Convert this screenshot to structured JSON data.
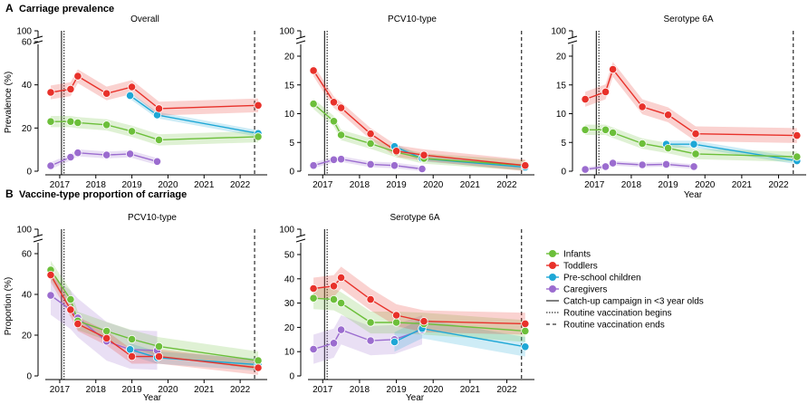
{
  "colors": {
    "infants": "#6cbf3a",
    "toddlers": "#e8312a",
    "preschool": "#1ea7d6",
    "caregivers": "#9b6ccf",
    "axis": "#000000"
  },
  "sections": [
    {
      "letter": "A",
      "title": "Carriage prevalence"
    },
    {
      "letter": "B",
      "title": "Vaccine-type proportion of carriage"
    }
  ],
  "legend": {
    "items": [
      {
        "key": "infants",
        "label": "Infants",
        "kind": "dot"
      },
      {
        "key": "toddlers",
        "label": "Toddlers",
        "kind": "dot"
      },
      {
        "key": "preschool",
        "label": "Pre-school children",
        "kind": "dot"
      },
      {
        "key": "caregivers",
        "label": "Caregivers",
        "kind": "dot"
      },
      {
        "key": "catchup",
        "label": "Catch-up campaign in <3 year olds",
        "kind": "solid"
      },
      {
        "key": "routine_begin",
        "label": "Routine vaccination begins",
        "kind": "dotted"
      },
      {
        "key": "routine_end",
        "label": "Routine vaccination ends",
        "kind": "dashed"
      }
    ]
  },
  "events": {
    "catchup": 2017.05,
    "routine_begin": 2017.12,
    "routine_end": 2022.4
  },
  "chart_data": [
    {
      "id": "a-overall",
      "type": "line",
      "title": "Overall",
      "ylabel": "Prevalence (%)",
      "xlabel": "",
      "yticks": [
        0,
        20,
        40,
        60
      ],
      "ybreak_top": 100,
      "ylim": [
        0,
        60
      ],
      "xticks": [
        2017,
        2018,
        2019,
        2020,
        2021,
        2022
      ],
      "xlim": [
        2016.6,
        2022.75
      ],
      "series": [
        {
          "name": "Toddlers",
          "key": "toddlers",
          "x": [
            2016.75,
            2017.3,
            2017.5,
            2018.3,
            2019.0,
            2019.75,
            2022.5
          ],
          "y": [
            36.5,
            38.0,
            44.0,
            36.0,
            39.0,
            29.0,
            30.5
          ]
        },
        {
          "name": "Infants",
          "key": "infants",
          "x": [
            2016.75,
            2017.3,
            2017.5,
            2018.3,
            2019.0,
            2019.75,
            2022.5
          ],
          "y": [
            23.0,
            23.0,
            22.5,
            21.5,
            18.5,
            14.5,
            16.0
          ]
        },
        {
          "name": "Pre-school children",
          "key": "preschool",
          "x": [
            2018.95,
            2019.7,
            2022.5
          ],
          "y": [
            35.0,
            26.0,
            17.5
          ]
        },
        {
          "name": "Caregivers",
          "key": "caregivers",
          "x": [
            2016.75,
            2017.3,
            2017.5,
            2018.3,
            2018.95,
            2019.7
          ],
          "y": [
            2.5,
            6.5,
            8.5,
            7.5,
            8.0,
            4.5
          ]
        }
      ]
    },
    {
      "id": "a-pcv10",
      "type": "line",
      "title": "PCV10-type",
      "ylabel": "",
      "xlabel": "",
      "yticks": [
        0,
        5,
        10,
        15,
        20
      ],
      "ybreak_top": 100,
      "ylim": [
        0,
        20
      ],
      "xticks": [
        2017,
        2018,
        2019,
        2020,
        2021,
        2022
      ],
      "xlim": [
        2016.6,
        2022.75
      ],
      "series": [
        {
          "name": "Toddlers",
          "key": "toddlers",
          "x": [
            2016.75,
            2017.3,
            2017.5,
            2018.3,
            2019.0,
            2019.75,
            2022.5
          ],
          "y": [
            17.5,
            12.0,
            11.0,
            6.5,
            3.5,
            2.8,
            1.0
          ]
        },
        {
          "name": "Infants",
          "key": "infants",
          "x": [
            2016.75,
            2017.3,
            2017.5,
            2018.3,
            2019.0,
            2019.75,
            2022.5
          ],
          "y": [
            11.7,
            8.7,
            6.3,
            4.8,
            3.3,
            2.2,
            1.0
          ]
        },
        {
          "name": "Pre-school children",
          "key": "preschool",
          "x": [
            2018.95,
            2019.7,
            2022.5
          ],
          "y": [
            4.3,
            2.2,
            0.7
          ]
        },
        {
          "name": "Caregivers",
          "key": "caregivers",
          "x": [
            2016.75,
            2017.3,
            2017.5,
            2018.3,
            2018.95,
            2019.7
          ],
          "y": [
            1.0,
            2.0,
            2.1,
            1.2,
            1.0,
            0.4
          ]
        }
      ]
    },
    {
      "id": "a-6a",
      "type": "line",
      "title": "Serotype 6A",
      "ylabel": "",
      "xlabel": "Year",
      "yticks": [
        0,
        5,
        10,
        15,
        20
      ],
      "ybreak_top": 100,
      "ylim": [
        0,
        20
      ],
      "xticks": [
        2017,
        2018,
        2019,
        2020,
        2021,
        2022
      ],
      "xlim": [
        2016.6,
        2022.75
      ],
      "series": [
        {
          "name": "Toddlers",
          "key": "toddlers",
          "x": [
            2016.75,
            2017.3,
            2017.5,
            2018.3,
            2019.0,
            2019.75,
            2022.5
          ],
          "y": [
            12.5,
            13.8,
            17.7,
            11.2,
            9.8,
            6.5,
            6.2
          ]
        },
        {
          "name": "Infants",
          "key": "infants",
          "x": [
            2016.75,
            2017.3,
            2017.5,
            2018.3,
            2019.0,
            2019.75,
            2022.5
          ],
          "y": [
            7.2,
            7.2,
            6.7,
            4.8,
            4.0,
            3.0,
            2.5
          ]
        },
        {
          "name": "Pre-school children",
          "key": "preschool",
          "x": [
            2018.95,
            2019.7,
            2022.5
          ],
          "y": [
            4.7,
            4.7,
            1.8
          ]
        },
        {
          "name": "Caregivers",
          "key": "caregivers",
          "x": [
            2016.75,
            2017.3,
            2017.5,
            2018.3,
            2018.95,
            2019.7
          ],
          "y": [
            0.3,
            0.8,
            1.4,
            1.1,
            1.2,
            0.8
          ]
        }
      ]
    },
    {
      "id": "b-pcv10",
      "type": "line",
      "title": "PCV10-type",
      "ylabel": "Proportion (%)",
      "xlabel": "Year",
      "yticks": [
        0,
        20,
        40,
        60
      ],
      "ybreak_top": 100,
      "ylim": [
        0,
        60
      ],
      "xticks": [
        2017,
        2018,
        2019,
        2020,
        2021,
        2022
      ],
      "xlim": [
        2016.6,
        2022.75
      ],
      "series": [
        {
          "name": "Infants",
          "key": "infants",
          "x": [
            2016.75,
            2017.3,
            2017.5,
            2018.3,
            2019.0,
            2019.75,
            2022.5
          ],
          "y": [
            52.0,
            37.5,
            27.0,
            22.0,
            18.0,
            14.5,
            7.5
          ]
        },
        {
          "name": "Toddlers",
          "key": "toddlers",
          "x": [
            2016.75,
            2017.3,
            2017.5,
            2018.3,
            2019.0,
            2019.75,
            2022.5
          ],
          "y": [
            49.5,
            32.5,
            25.5,
            18.5,
            9.5,
            9.5,
            4.0
          ]
        },
        {
          "name": "Pre-school children",
          "key": "preschool",
          "x": [
            2018.95,
            2019.7,
            2022.5
          ],
          "y": [
            13.0,
            9.0,
            5.5
          ]
        },
        {
          "name": "Caregivers",
          "key": "caregivers",
          "x": [
            2016.75,
            2017.3,
            2017.5,
            2018.3,
            2018.95,
            2019.7
          ],
          "y": [
            39.5,
            32.5,
            28.5,
            17.0,
            13.0,
            12.5
          ]
        }
      ]
    },
    {
      "id": "b-6a",
      "type": "line",
      "title": "Serotype 6A",
      "ylabel": "",
      "xlabel": "Year",
      "yticks": [
        0,
        10,
        20,
        30,
        40,
        50
      ],
      "ybreak_top": 100,
      "ylim": [
        0,
        50
      ],
      "xticks": [
        2017,
        2018,
        2019,
        2020,
        2021,
        2022
      ],
      "xlim": [
        2016.6,
        2022.75
      ],
      "series": [
        {
          "name": "Toddlers",
          "key": "toddlers",
          "x": [
            2016.75,
            2017.3,
            2017.5,
            2018.3,
            2019.0,
            2019.75,
            2022.5
          ],
          "y": [
            36.0,
            37.0,
            40.5,
            31.5,
            25.0,
            22.5,
            21.5
          ]
        },
        {
          "name": "Infants",
          "key": "infants",
          "x": [
            2016.75,
            2017.3,
            2017.5,
            2018.3,
            2019.0,
            2019.75,
            2022.5
          ],
          "y": [
            32.0,
            31.5,
            30.0,
            22.0,
            22.0,
            21.5,
            18.5
          ]
        },
        {
          "name": "Pre-school children",
          "key": "preschool",
          "x": [
            2018.95,
            2019.7,
            2022.5
          ],
          "y": [
            14.0,
            19.5,
            12.0
          ]
        },
        {
          "name": "Caregivers",
          "key": "caregivers",
          "x": [
            2016.75,
            2017.3,
            2017.5,
            2018.3,
            2018.95,
            2019.7
          ],
          "y": [
            11.0,
            13.5,
            19.0,
            14.5,
            15.0,
            19.0
          ]
        }
      ]
    }
  ]
}
